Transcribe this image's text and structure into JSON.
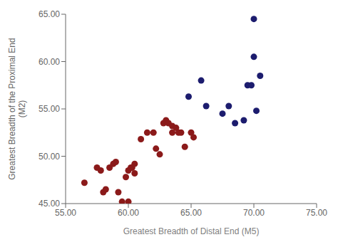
{
  "chart_data": {
    "type": "scatter",
    "xlabel": "Greatest Breadth of Distal End (M5)",
    "ylabel": "Greatest Breadth of the Proximal End\n(M2)",
    "xlim": [
      55.0,
      75.0
    ],
    "ylim": [
      45.0,
      65.0
    ],
    "xticks": [
      {
        "value": 55.0,
        "label": "55.00"
      },
      {
        "value": 60.0,
        "label": "60.00"
      },
      {
        "value": 65.0,
        "label": "65.00"
      },
      {
        "value": 70.0,
        "label": "70.00"
      },
      {
        "value": 75.0,
        "label": "75.00"
      }
    ],
    "yticks": [
      {
        "value": 45.0,
        "label": "45.00"
      },
      {
        "value": 50.0,
        "label": "50.00"
      },
      {
        "value": 55.0,
        "label": "55.00"
      },
      {
        "value": 60.0,
        "label": "60.00"
      },
      {
        "value": 65.0,
        "label": "65.00"
      }
    ],
    "grid": false,
    "series": [
      {
        "color": "#8B1A1A",
        "x": [
          56.5,
          57.5,
          57.8,
          58.0,
          58.2,
          58.5,
          58.8,
          59.0,
          59.2,
          59.5,
          59.8,
          60.0,
          60.0,
          60.2,
          60.3,
          60.5,
          60.5,
          61.0,
          61.5,
          62.0,
          62.2,
          62.5,
          62.8,
          63.0,
          63.2,
          63.5,
          63.5,
          63.8,
          64.0,
          64.2,
          64.5,
          65.0,
          65.2
        ],
        "values": [
          47.2,
          48.8,
          48.5,
          46.2,
          46.5,
          48.8,
          49.2,
          49.4,
          46.2,
          45.2,
          47.8,
          48.5,
          45.2,
          48.8,
          48.8,
          49.2,
          48.2,
          51.8,
          52.5,
          52.5,
          50.8,
          50.2,
          53.5,
          53.8,
          53.5,
          53.2,
          52.5,
          53.0,
          52.5,
          52.5,
          51.0,
          52.5,
          52.0
        ]
      },
      {
        "color": "#1C1C6E",
        "x": [
          64.8,
          65.8,
          66.2,
          67.5,
          68.0,
          68.5,
          69.2,
          69.5,
          69.8,
          70.0,
          70.0,
          70.2,
          70.5
        ],
        "values": [
          56.3,
          58.0,
          55.3,
          54.5,
          55.3,
          53.5,
          53.8,
          57.5,
          57.5,
          64.5,
          60.5,
          54.8,
          58.5
        ]
      }
    ]
  }
}
